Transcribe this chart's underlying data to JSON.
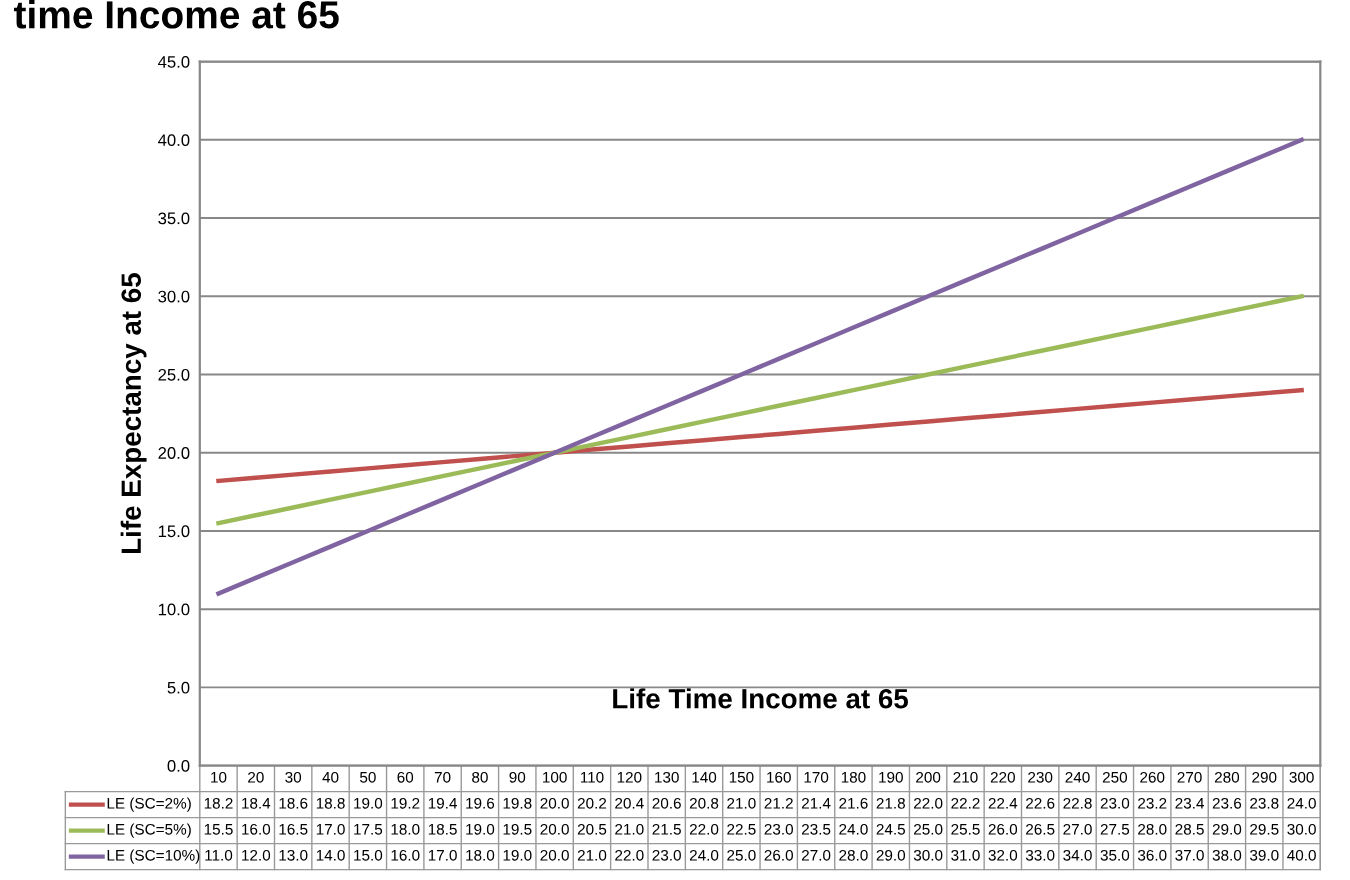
{
  "chart_data": {
    "type": "line",
    "title": "time Income at 65",
    "xlabel": "Life Time Income at 65",
    "ylabel": "Life Expectancy at 65",
    "categories": [
      "10",
      "20",
      "30",
      "40",
      "50",
      "60",
      "70",
      "80",
      "90",
      "100",
      "110",
      "120",
      "130",
      "140",
      "150",
      "160",
      "170",
      "180",
      "190",
      "200",
      "210",
      "220",
      "230",
      "240",
      "250",
      "260",
      "270",
      "280",
      "290",
      "300"
    ],
    "series": [
      {
        "name": "LE (SC=2%)",
        "color": "#c0504d",
        "values": [
          18.2,
          18.4,
          18.6,
          18.8,
          19.0,
          19.2,
          19.4,
          19.6,
          19.8,
          20.0,
          20.2,
          20.4,
          20.6,
          20.8,
          21.0,
          21.2,
          21.4,
          21.6,
          21.8,
          22.0,
          22.2,
          22.4,
          22.6,
          22.8,
          23.0,
          23.2,
          23.4,
          23.6,
          23.8,
          24.0
        ],
        "value_labels": [
          "18.2",
          "18.4",
          "18.6",
          "18.8",
          "19.0",
          "19.2",
          "19.4",
          "19.6",
          "19.8",
          "20.0",
          "20.2",
          "20.4",
          "20.6",
          "20.8",
          "21.0",
          "21.2",
          "21.4",
          "21.6",
          "21.8",
          "22.0",
          "22.2",
          "22.4",
          "22.6",
          "22.8",
          "23.0",
          "23.2",
          "23.4",
          "23.6",
          "23.8",
          "24.0"
        ]
      },
      {
        "name": "LE (SC=5%)",
        "color": "#9bbb59",
        "values": [
          15.5,
          16.0,
          16.5,
          17.0,
          17.5,
          18.0,
          18.5,
          19.0,
          19.5,
          20.0,
          20.5,
          21.0,
          21.5,
          22.0,
          22.5,
          23.0,
          23.5,
          24.0,
          24.5,
          25.0,
          25.5,
          26.0,
          26.5,
          27.0,
          27.5,
          28.0,
          28.5,
          29.0,
          29.5,
          30.0
        ],
        "value_labels": [
          "15.5",
          "16.0",
          "16.5",
          "17.0",
          "17.5",
          "18.0",
          "18.5",
          "19.0",
          "19.5",
          "20.0",
          "20.5",
          "21.0",
          "21.5",
          "22.0",
          "22.5",
          "23.0",
          "23.5",
          "24.0",
          "24.5",
          "25.0",
          "25.5",
          "26.0",
          "26.5",
          "27.0",
          "27.5",
          "28.0",
          "28.5",
          "29.0",
          "29.5",
          "30.0"
        ]
      },
      {
        "name": "LE (SC=10%)",
        "color": "#8064a2",
        "values": [
          11.0,
          12.0,
          13.0,
          14.0,
          15.0,
          16.0,
          17.0,
          18.0,
          19.0,
          20.0,
          21.0,
          22.0,
          23.0,
          24.0,
          25.0,
          26.0,
          27.0,
          28.0,
          29.0,
          30.0,
          31.0,
          32.0,
          33.0,
          34.0,
          35.0,
          36.0,
          37.0,
          38.0,
          39.0,
          40.0
        ],
        "value_labels": [
          "11.0",
          "12.0",
          "13.0",
          "14.0",
          "15.0",
          "16.0",
          "17.0",
          "18.0",
          "19.0",
          "20.0",
          "21.0",
          "22.0",
          "23.0",
          "24.0",
          "25.0",
          "26.0",
          "27.0",
          "28.0",
          "29.0",
          "30.0",
          "31.0",
          "32.0",
          "33.0",
          "34.0",
          "35.0",
          "36.0",
          "37.0",
          "38.0",
          "39.0",
          "40.0"
        ]
      }
    ],
    "ylim": [
      0,
      45
    ],
    "yticks": [
      {
        "value": 0,
        "label": "0.0"
      },
      {
        "value": 5,
        "label": "5.0"
      },
      {
        "value": 10,
        "label": "10.0"
      },
      {
        "value": 15,
        "label": "15.0"
      },
      {
        "value": 20,
        "label": "20.0"
      },
      {
        "value": 25,
        "label": "25.0"
      },
      {
        "value": 30,
        "label": "30.0"
      },
      {
        "value": 35,
        "label": "35.0"
      },
      {
        "value": 40,
        "label": "40.0"
      },
      {
        "value": 45,
        "label": "45.0"
      }
    ],
    "grid": "y",
    "legend": "bottom",
    "marker": "none",
    "line_style": "solid"
  }
}
